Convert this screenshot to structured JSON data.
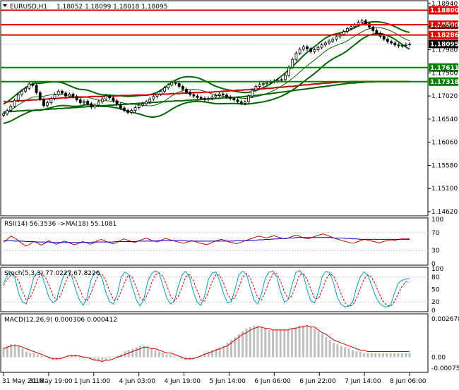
{
  "symbol_header": {
    "symbol": "EURUSD,H1",
    "ohlc": "1.18052 1.18099 1.18018 1.18095"
  },
  "colors": {
    "bull_candle": "#ffffff",
    "bear_candle": "#000000",
    "bollinger": "#006600",
    "ma_fast": "#cc0000",
    "ma_slow": "#0000aa",
    "level_red": "#e00000",
    "level_green": "#008000",
    "rsi_line": "#cc0000",
    "rsi_ma": "#0000cc",
    "stoch_main": "#00a0c0",
    "stoch_signal": "#cc0000",
    "macd_hist": "#c0c0c0",
    "macd_signal": "#cc0000",
    "price_tag_bg": "#000000",
    "price_tag_text": "#ffffff"
  },
  "main_chart": {
    "price_axis_ticks": [
      "1.18940",
      "1.18460",
      "1.17980",
      "1.17500",
      "1.17020",
      "1.16540",
      "1.16060",
      "1.15580",
      "1.15100",
      "1.14620"
    ],
    "levels": [
      {
        "label": "1.18800",
        "color": "red",
        "value": 1.188
      },
      {
        "label": "1.18500",
        "color": "red",
        "value": 1.185
      },
      {
        "label": "1.18286",
        "color": "red",
        "value": 1.18286
      },
      {
        "label": "1.17611",
        "color": "green",
        "value": 1.17611
      },
      {
        "label": "1.17318",
        "color": "green",
        "value": 1.17318
      }
    ],
    "current_price": "1.18095"
  },
  "rsi_panel": {
    "title": "RSI(14) 56.3536  ->MA(18) 55.1081",
    "ticks": [
      "100",
      "70",
      "30",
      "0"
    ]
  },
  "stoch_panel": {
    "title": "Stoch(5,3,3) 77.0227 67.8226",
    "ticks": [
      "100",
      "80",
      "50",
      "20",
      "0"
    ]
  },
  "macd_panel": {
    "title": "MACD(12,26,9) 0.000306 0.000412",
    "ticks": [
      "0.002678",
      "0.00",
      "-0.000754"
    ]
  },
  "time_axis": [
    "31 May 2018",
    "31 May 19:00",
    "1 Jun 11:00",
    "4 Jun 03:00",
    "4 Jun 19:00",
    "5 Jun 14:00",
    "6 Jun 06:00",
    "6 Jun 22:00",
    "7 Jun 14:00",
    "8 Jun 06:00"
  ],
  "chart_data": {
    "type": "candlestick",
    "symbol": "EURUSD",
    "timeframe": "H1",
    "price_range": [
      1.1462,
      1.1894
    ],
    "closes": [
      1.1665,
      1.1672,
      1.1681,
      1.1693,
      1.1705,
      1.1712,
      1.1718,
      1.1727,
      1.1724,
      1.1709,
      1.1695,
      1.1682,
      1.1688,
      1.1697,
      1.1705,
      1.1712,
      1.1708,
      1.1702,
      1.1706,
      1.1701,
      1.1694,
      1.1688,
      1.1691,
      1.1686,
      1.1679,
      1.1683,
      1.169,
      1.1696,
      1.1702,
      1.1698,
      1.1692,
      1.1684,
      1.1677,
      1.1672,
      1.1668,
      1.1672,
      1.1678,
      1.1683,
      1.1686,
      1.169,
      1.1696,
      1.1701,
      1.1706,
      1.1712,
      1.1719,
      1.1725,
      1.173,
      1.1728,
      1.1722,
      1.1716,
      1.171,
      1.1705,
      1.1702,
      1.1699,
      1.1697,
      1.1695,
      1.1697,
      1.17,
      1.1703,
      1.1706,
      1.1704,
      1.17,
      1.1697,
      1.1694,
      1.169,
      1.1687,
      1.169,
      1.1702,
      1.1714,
      1.1722,
      1.1726,
      1.1728,
      1.173,
      1.1732,
      1.1733,
      1.1735,
      1.1736,
      1.1745,
      1.1762,
      1.1778,
      1.1791,
      1.1799,
      1.1804,
      1.18,
      1.1794,
      1.1798,
      1.1803,
      1.1808,
      1.1812,
      1.1816,
      1.182,
      1.1825,
      1.183,
      1.1836,
      1.1842,
      1.1846,
      1.185,
      1.1855,
      1.1858,
      1.1852,
      1.1845,
      1.1838,
      1.1832,
      1.1826,
      1.182,
      1.1815,
      1.1812,
      1.1808,
      1.1806,
      1.1807,
      1.1809,
      1.181
    ],
    "ma_fast": [
      1.169,
      1.169,
      1.169,
      1.1691,
      1.1692,
      1.1692,
      1.1693,
      1.1693,
      1.1694,
      1.1694,
      1.1695,
      1.1695,
      1.1696,
      1.1696,
      1.1697,
      1.1697,
      1.1698,
      1.1698,
      1.1699,
      1.1699,
      1.17,
      1.17,
      1.17,
      1.17,
      1.1701,
      1.1701,
      1.1701,
      1.1701,
      1.1702,
      1.1702,
      1.1702,
      1.1702,
      1.1703,
      1.1703,
      1.1703,
      1.1703,
      1.1704,
      1.1704,
      1.1704,
      1.1704,
      1.1705,
      1.1705,
      1.1705,
      1.1706,
      1.1706,
      1.1706,
      1.1707,
      1.1707,
      1.1707,
      1.1708,
      1.1708,
      1.1708,
      1.1709,
      1.1709,
      1.1709,
      1.171,
      1.171,
      1.171,
      1.1711,
      1.1711,
      1.1712,
      1.1712,
      1.1713,
      1.1713,
      1.1714,
      1.1714,
      1.1715,
      1.1715,
      1.1716,
      1.1716,
      1.1717,
      1.1717,
      1.1718,
      1.1718,
      1.1719,
      1.172,
      1.172,
      1.1721,
      1.1722,
      1.1722,
      1.1723,
      1.1724,
      1.1725,
      1.1725,
      1.1726,
      1.1727,
      1.1727,
      1.1728,
      1.1729,
      1.1729,
      1.173,
      1.173,
      1.1731,
      1.1731,
      1.1731,
      1.1732,
      1.1732,
      1.1732,
      1.1732,
      1.1732,
      1.1732,
      1.1732,
      1.1732,
      1.1732,
      1.1732,
      1.1732,
      1.1732,
      1.1732,
      1.1732,
      1.1732,
      1.1732,
      1.1732
    ],
    "ma_slow": [
      1.1669,
      1.1669,
      1.167,
      1.167,
      1.1671,
      1.1671,
      1.1672,
      1.1672,
      1.1672,
      1.1673,
      1.1673,
      1.1674,
      1.1674,
      1.1675,
      1.1675,
      1.1676,
      1.1676,
      1.1677,
      1.1677,
      1.1678,
      1.1678,
      1.1679,
      1.1679,
      1.168,
      1.168,
      1.1681,
      1.1681,
      1.1682,
      1.1682,
      1.1683,
      1.1683,
      1.1684,
      1.1684,
      1.1685,
      1.1685,
      1.1686,
      1.1686,
      1.1687,
      1.1687,
      1.1688,
      1.1688,
      1.1689,
      1.1689,
      1.169,
      1.169,
      1.1691,
      1.1691,
      1.1692,
      1.1692,
      1.1692,
      1.1693,
      1.1693,
      1.1694,
      1.1694,
      1.1695,
      1.1695,
      1.1696,
      1.1696,
      1.1697,
      1.1697,
      1.1698,
      1.1698,
      1.1699,
      1.1699,
      1.17,
      1.17,
      1.1701,
      1.1702,
      1.1702,
      1.1703,
      1.1704,
      1.1705,
      1.1706,
      1.1707,
      1.1708,
      1.1709,
      1.171,
      1.1711,
      1.1712,
      1.1713,
      1.1714,
      1.1715,
      1.1716,
      1.1717,
      1.1718,
      1.1719,
      1.172,
      1.1721,
      1.1722,
      1.1723,
      1.1724,
      1.1725,
      1.1726,
      1.1727,
      1.1728,
      1.1729,
      1.1729,
      1.173,
      1.173,
      1.1731,
      1.1731,
      1.1731,
      1.1732,
      1.1732,
      1.1732,
      1.1732,
      1.1732,
      1.1732,
      1.1732,
      1.1732,
      1.1732,
      1.1732
    ],
    "rsi": [
      48,
      55,
      62,
      58,
      52,
      45,
      40,
      44,
      50,
      47,
      42,
      46,
      52,
      48,
      44,
      47,
      51,
      49,
      45,
      43,
      46,
      50,
      48,
      44,
      47,
      52,
      55,
      51,
      48,
      45,
      47,
      52,
      56,
      53,
      50,
      48,
      52,
      55,
      58,
      54,
      51,
      49,
      53,
      57,
      55,
      52,
      50,
      48,
      46,
      49,
      52,
      50,
      47,
      45,
      43,
      46,
      50,
      53,
      55,
      52,
      49,
      47,
      45,
      48,
      51,
      54,
      57,
      60,
      62,
      60,
      58,
      61,
      63,
      60,
      58,
      56,
      59,
      62,
      64,
      61,
      58,
      56,
      59,
      62,
      65,
      67,
      64,
      61,
      58,
      55,
      52,
      50,
      48,
      46,
      49,
      52,
      55,
      53,
      51,
      49,
      47,
      50,
      52,
      54,
      52,
      55,
      56,
      56,
      56
    ],
    "rsi_ma": [
      52,
      52,
      52,
      51,
      51,
      51,
      50,
      50,
      50,
      49,
      49,
      49,
      49,
      48,
      48,
      48,
      48,
      48,
      48,
      48,
      48,
      48,
      48,
      48,
      49,
      49,
      49,
      49,
      49,
      49,
      50,
      50,
      50,
      50,
      50,
      50,
      51,
      51,
      51,
      51,
      51,
      52,
      52,
      52,
      52,
      52,
      52,
      52,
      52,
      51,
      51,
      51,
      51,
      51,
      51,
      51,
      51,
      51,
      51,
      51,
      51,
      51,
      52,
      52,
      52,
      52,
      53,
      53,
      54,
      54,
      55,
      55,
      56,
      56,
      57,
      57,
      58,
      58,
      59,
      59,
      59,
      59,
      59,
      59,
      59,
      59,
      59,
      59,
      58,
      58,
      58,
      57,
      57,
      56,
      56,
      55,
      55,
      55,
      55,
      55,
      55,
      55,
      55,
      55,
      55,
      55,
      55,
      55,
      55
    ],
    "stoch_k": [
      65,
      85,
      92,
      78,
      40,
      20,
      15,
      45,
      80,
      92,
      88,
      60,
      30,
      18,
      25,
      60,
      88,
      95,
      82,
      50,
      25,
      12,
      30,
      72,
      90,
      94,
      76,
      42,
      20,
      15,
      40,
      80,
      92,
      86,
      55,
      25,
      10,
      28,
      70,
      88,
      95,
      90,
      60,
      30,
      15,
      22,
      55,
      85,
      94,
      80,
      45,
      20,
      12,
      35,
      75,
      90,
      92,
      70,
      40,
      18,
      20,
      50,
      85,
      94,
      88,
      55,
      25,
      15,
      40,
      78,
      92,
      95,
      80,
      45,
      20,
      25,
      60,
      90,
      96,
      85,
      50,
      22,
      18,
      45,
      82,
      94,
      90,
      65,
      30,
      14,
      8,
      10,
      20,
      55,
      80,
      92,
      85,
      60,
      35,
      18,
      10,
      8,
      12,
      40,
      65,
      72,
      75,
      77
    ],
    "stoch_d": [
      60,
      75,
      85,
      85,
      70,
      45,
      25,
      30,
      50,
      75,
      88,
      80,
      60,
      35,
      25,
      35,
      60,
      82,
      88,
      75,
      52,
      30,
      22,
      40,
      65,
      85,
      86,
      70,
      45,
      25,
      25,
      45,
      70,
      85,
      78,
      55,
      30,
      22,
      40,
      65,
      85,
      90,
      82,
      60,
      35,
      22,
      32,
      55,
      80,
      86,
      72,
      48,
      25,
      22,
      45,
      70,
      86,
      84,
      65,
      40,
      25,
      30,
      55,
      80,
      88,
      78,
      55,
      30,
      25,
      45,
      70,
      88,
      88,
      70,
      45,
      28,
      35,
      60,
      85,
      88,
      75,
      50,
      28,
      28,
      50,
      75,
      88,
      82,
      62,
      38,
      18,
      10,
      12,
      28,
      52,
      75,
      85,
      80,
      62,
      40,
      22,
      12,
      10,
      20,
      40,
      58,
      68,
      68
    ],
    "macd_hist": [
      0.0007,
      0.0008,
      0.0009,
      0.0009,
      0.0008,
      0.0006,
      0.0004,
      0.0003,
      0.0003,
      0.0002,
      0.0001,
      0.0,
      -0.0001,
      -0.0002,
      -0.0002,
      -0.0001,
      0.0,
      0.0001,
      0.0002,
      0.0002,
      0.0001,
      0.0001,
      0.0,
      -0.0001,
      -0.0002,
      -0.0003,
      -0.0003,
      -0.0002,
      -0.0001,
      0.0,
      0.0001,
      0.0002,
      0.0004,
      0.0005,
      0.0006,
      0.0007,
      0.0008,
      0.0008,
      0.0007,
      0.0006,
      0.0005,
      0.0004,
      0.0003,
      0.0002,
      0.0002,
      0.0001,
      0.0,
      -0.0001,
      -0.0002,
      -0.0002,
      -0.0001,
      0.0,
      0.0001,
      0.0003,
      0.0004,
      0.0005,
      0.0006,
      0.0007,
      0.0008,
      0.001,
      0.0012,
      0.0014,
      0.0016,
      0.0018,
      0.002,
      0.0021,
      0.0022,
      0.0022,
      0.0021,
      0.002,
      0.0019,
      0.0019,
      0.0019,
      0.0019,
      0.0019,
      0.0019,
      0.002,
      0.0021,
      0.0022,
      0.0022,
      0.0022,
      0.0021,
      0.002,
      0.0018,
      0.0016,
      0.0014,
      0.0012,
      0.001,
      0.0009,
      0.0008,
      0.0007,
      0.0006,
      0.0005,
      0.0004,
      0.0004,
      0.0003,
      0.0003,
      0.0003,
      0.0003,
      0.0003,
      0.0003,
      0.0003,
      0.0003,
      0.0003,
      0.0003,
      0.0003,
      0.0003,
      0.0003
    ],
    "macd_signal": [
      0.0006,
      0.0007,
      0.0008,
      0.0008,
      0.0008,
      0.0007,
      0.0006,
      0.0005,
      0.0004,
      0.0003,
      0.0002,
      0.0001,
      0.0,
      -0.0001,
      -0.0001,
      -0.0001,
      0.0,
      0.0001,
      0.0001,
      0.0001,
      0.0001,
      0.0,
      0.0,
      -0.0001,
      -0.0002,
      -0.0002,
      -0.0003,
      -0.0002,
      -0.0002,
      -0.0001,
      0.0,
      0.0001,
      0.0002,
      0.0003,
      0.0004,
      0.0005,
      0.0006,
      0.0007,
      0.0007,
      0.0006,
      0.0006,
      0.0005,
      0.0004,
      0.0003,
      0.0003,
      0.0002,
      0.0001,
      0.0,
      -0.0001,
      -0.0001,
      -0.0001,
      0.0,
      0.0001,
      0.0002,
      0.0003,
      0.0004,
      0.0005,
      0.0006,
      0.0007,
      0.0008,
      0.001,
      0.0012,
      0.0014,
      0.0016,
      0.0017,
      0.0019,
      0.002,
      0.0021,
      0.0021,
      0.002,
      0.002,
      0.0019,
      0.0019,
      0.0019,
      0.0019,
      0.0019,
      0.002,
      0.002,
      0.0021,
      0.0021,
      0.0022,
      0.0021,
      0.0021,
      0.0019,
      0.0017,
      0.0016,
      0.0014,
      0.0012,
      0.0011,
      0.001,
      0.0009,
      0.0008,
      0.0007,
      0.0006,
      0.0005,
      0.0005,
      0.0004,
      0.0004,
      0.0004,
      0.0004,
      0.0004,
      0.0004,
      0.0004,
      0.0004,
      0.0004,
      0.0004,
      0.0004,
      0.0004
    ]
  }
}
